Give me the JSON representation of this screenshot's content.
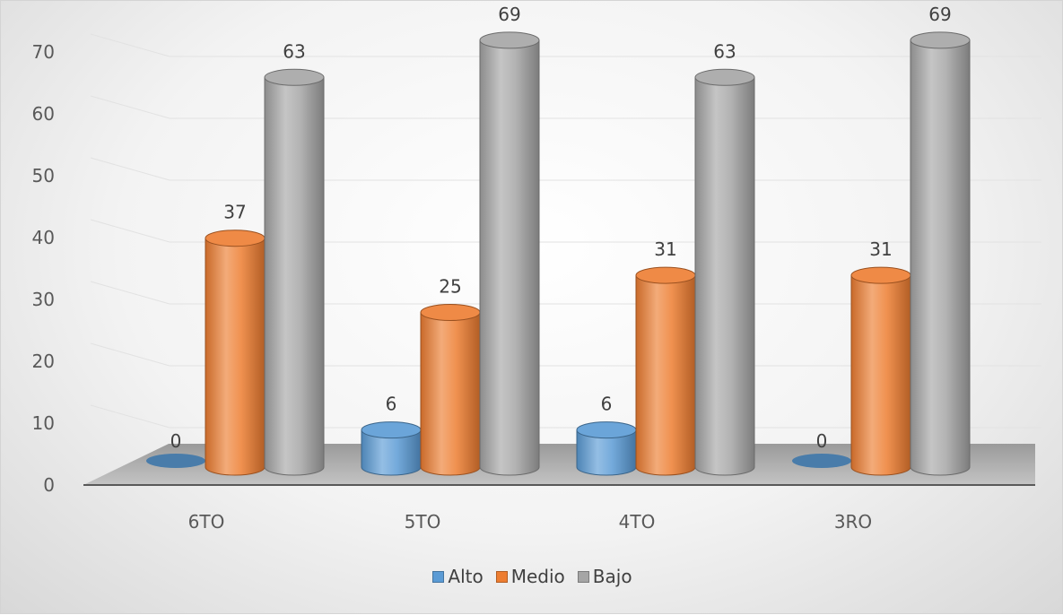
{
  "chart_data": {
    "type": "bar",
    "style": "3d-cylinder",
    "categories": [
      "6TO",
      "5TO",
      "4TO",
      "3RO"
    ],
    "series": [
      {
        "name": "Alto",
        "values": [
          0,
          6,
          6,
          0
        ],
        "color": "#5B9BD5"
      },
      {
        "name": "Medio",
        "values": [
          37,
          25,
          31,
          31
        ],
        "color": "#ED7D31"
      },
      {
        "name": "Bajo",
        "values": [
          63,
          69,
          63,
          69
        ],
        "color": "#A5A5A5"
      }
    ],
    "ylim": [
      0,
      70
    ],
    "y_ticks": [
      "0",
      "10",
      "20",
      "30",
      "40",
      "50",
      "60",
      "70"
    ],
    "grid": true,
    "legend_position": "bottom"
  }
}
